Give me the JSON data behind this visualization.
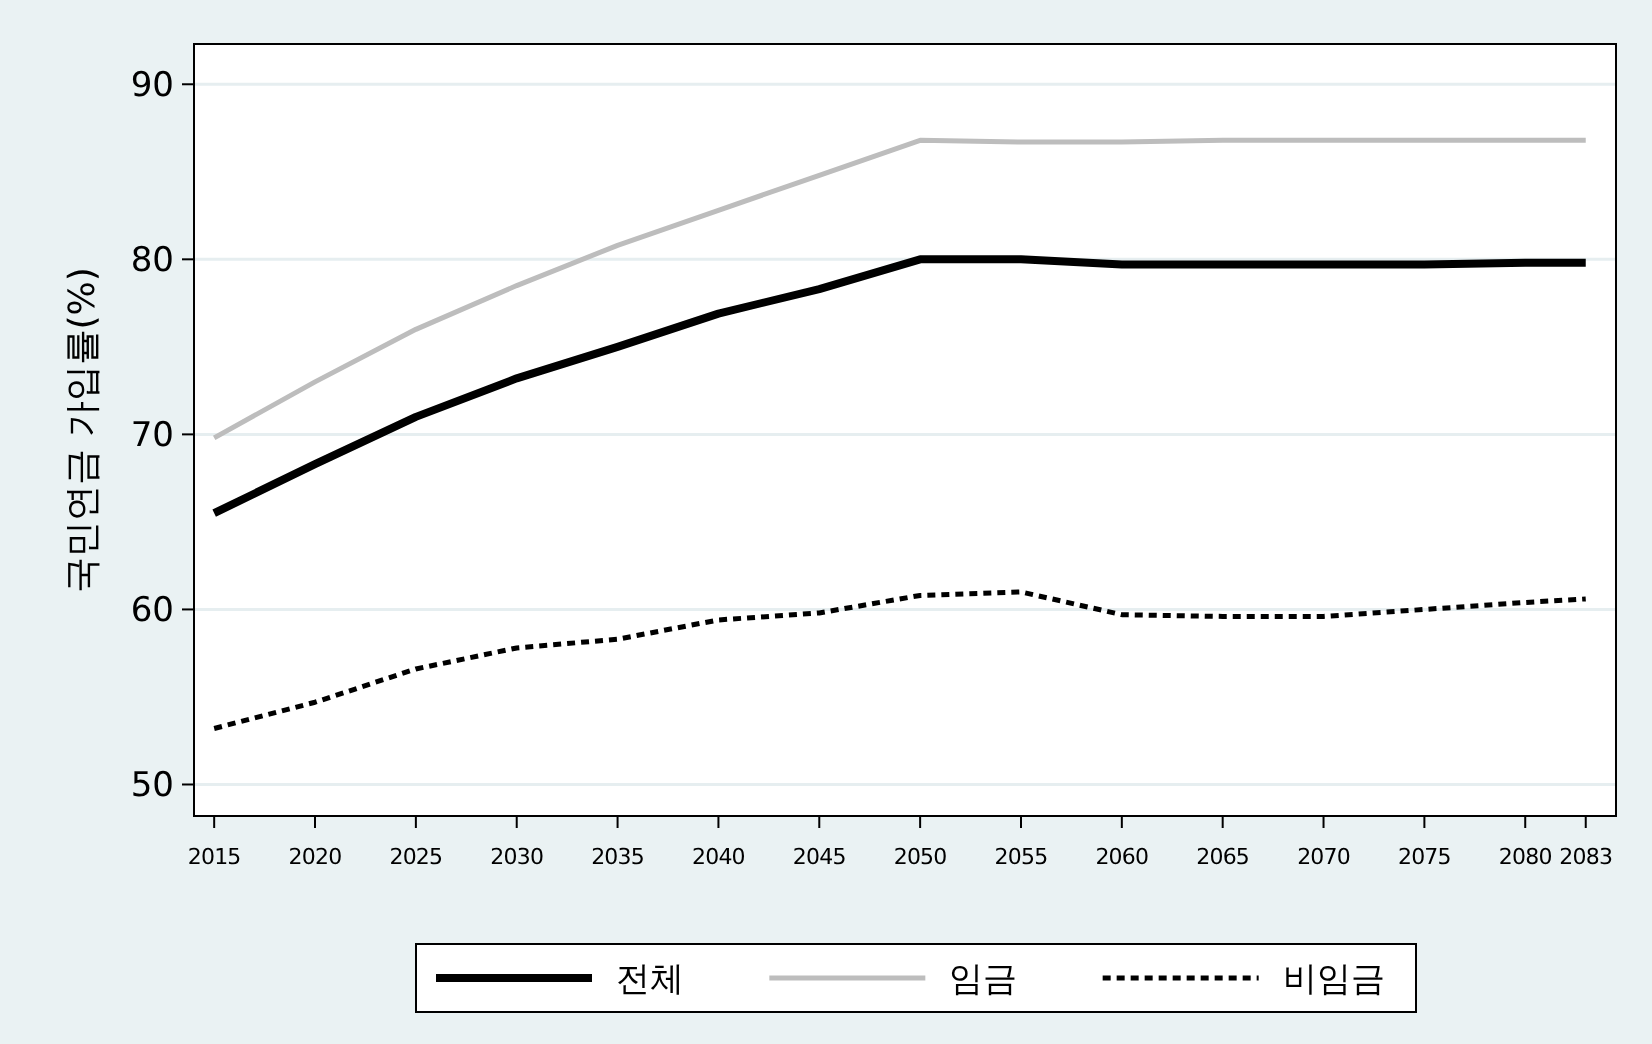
{
  "chart_data": {
    "type": "line",
    "ylabel": "국민연금 가입률(%)",
    "x": [
      2015,
      2020,
      2025,
      2030,
      2035,
      2040,
      2045,
      2050,
      2055,
      2060,
      2065,
      2070,
      2075,
      2080,
      2083
    ],
    "series": [
      {
        "name": "전체",
        "color": "#000000",
        "line_style": "solid",
        "values": [
          65.5,
          68.3,
          71.0,
          73.2,
          75.0,
          76.9,
          78.3,
          80.0,
          80.0,
          79.7,
          79.7,
          79.7,
          79.7,
          79.8,
          79.8
        ]
      },
      {
        "name": "임금",
        "color": "#bdbdbd",
        "line_style": "solid",
        "values": [
          69.8,
          73.0,
          76.0,
          78.5,
          80.8,
          82.8,
          84.8,
          86.8,
          86.7,
          86.7,
          86.8,
          86.8,
          86.8,
          86.8,
          86.8
        ]
      },
      {
        "name": "비임금",
        "color": "#000000",
        "line_style": "dotted",
        "values": [
          53.2,
          54.7,
          56.6,
          57.8,
          58.3,
          59.4,
          59.8,
          60.8,
          61.0,
          59.7,
          59.6,
          59.6,
          60.0,
          60.4,
          60.6
        ]
      }
    ],
    "xlim": [
      2014,
      2084.5
    ],
    "ylim": [
      48.2,
      92.3
    ],
    "xticks": [
      2015,
      2020,
      2025,
      2030,
      2035,
      2040,
      2045,
      2050,
      2055,
      2060,
      2065,
      2070,
      2075,
      2080,
      2083
    ],
    "yticks": [
      50,
      60,
      70,
      80,
      90
    ],
    "grid": "y",
    "legend": "bottom"
  }
}
